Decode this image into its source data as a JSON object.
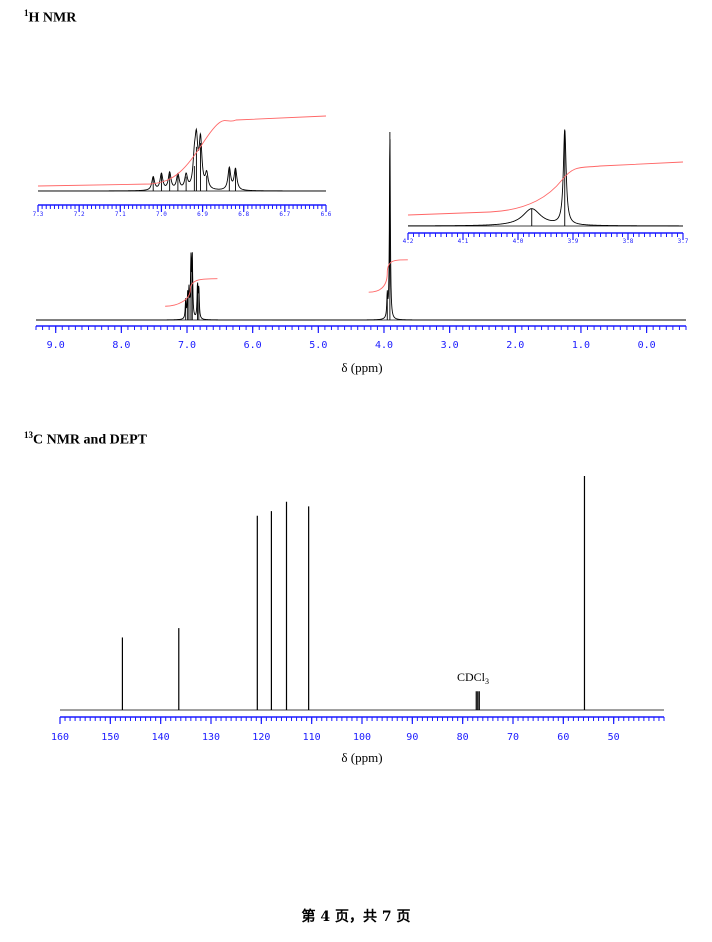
{
  "page": {
    "h_heading": {
      "sup": "1",
      "text": "H NMR"
    },
    "c_heading": {
      "sup": "13",
      "text": "C NMR and DEPT"
    },
    "footer": "第 4 页，共 7 页"
  },
  "chart_data": [
    {
      "type": "line",
      "title": "1H NMR",
      "xlabel": "δ (ppm)",
      "xlim": [
        9.3,
        -0.6
      ],
      "x_ticks": [
        "9.0",
        "8.0",
        "7.0",
        "6.0",
        "5.0",
        "4.0",
        "3.0",
        "2.0",
        "1.0",
        "0.0"
      ],
      "x_tick_values": [
        9.0,
        8.0,
        7.0,
        6.0,
        5.0,
        4.0,
        3.0,
        2.0,
        1.0,
        0.0
      ],
      "series": [
        {
          "peaks": [
            {
              "x": 7.02,
              "h": 0.1
            },
            {
              "x": 6.99,
              "h": 0.12
            },
            {
              "x": 6.97,
              "h": 0.14
            },
            {
              "x": 6.94,
              "h": 0.3
            },
            {
              "x": 6.92,
              "h": 0.32
            },
            {
              "x": 6.84,
              "h": 0.18
            },
            {
              "x": 6.82,
              "h": 0.16
            },
            {
              "x": 3.95,
              "h": 0.12
            },
            {
              "x": 3.91,
              "h": 1.0
            }
          ]
        }
      ],
      "integral_steps": [
        {
          "from": 7.15,
          "to": 6.75,
          "y0": 0.35,
          "y1": 0.58
        },
        {
          "from": 4.05,
          "to": 3.85,
          "y0": 0.6,
          "y1": 0.88
        }
      ],
      "insets": [
        {
          "xlim": [
            7.3,
            6.6
          ],
          "x_ticks": [
            "7.3",
            "7.2",
            "7.1",
            "7.0",
            "6.9",
            "6.8",
            "6.7",
            "6.6"
          ],
          "x_tick_values": [
            7.3,
            7.2,
            7.1,
            7.0,
            6.9,
            6.8,
            6.7,
            6.6
          ],
          "peaks": [
            {
              "x": 7.02,
              "h": 0.28
            },
            {
              "x": 7.0,
              "h": 0.34
            },
            {
              "x": 6.98,
              "h": 0.36
            },
            {
              "x": 6.96,
              "h": 0.32
            },
            {
              "x": 6.94,
              "h": 0.3
            },
            {
              "x": 6.92,
              "h": 0.52
            },
            {
              "x": 6.915,
              "h": 0.92
            },
            {
              "x": 6.905,
              "h": 1.0
            },
            {
              "x": 6.89,
              "h": 0.32
            },
            {
              "x": 6.835,
              "h": 0.46
            },
            {
              "x": 6.82,
              "h": 0.44
            }
          ]
        },
        {
          "xlim": [
            4.2,
            3.7
          ],
          "x_ticks": [
            "4.2",
            "4.1",
            "4.0",
            "3.9",
            "3.8",
            "3.7"
          ],
          "x_tick_values": [
            4.2,
            4.1,
            4.0,
            3.9,
            3.8,
            3.7
          ],
          "peaks": [
            {
              "x": 3.975,
              "h": 0.18,
              "w": 0.02
            },
            {
              "x": 3.915,
              "h": 1.0,
              "w": 0.003
            }
          ]
        }
      ]
    },
    {
      "type": "line",
      "title": "13C NMR and DEPT",
      "xlabel": "δ (ppm)",
      "xlim": [
        160,
        40
      ],
      "x_ticks": [
        "160",
        "150",
        "140",
        "130",
        "120",
        "110",
        "100",
        "90",
        "80",
        "70",
        "60",
        "50"
      ],
      "x_tick_values": [
        160,
        150,
        140,
        130,
        120,
        110,
        100,
        90,
        80,
        70,
        60,
        50
      ],
      "series": [
        {
          "peaks": [
            {
              "x": 147.6,
              "h": 0.31
            },
            {
              "x": 136.4,
              "h": 0.35
            },
            {
              "x": 120.8,
              "h": 0.83
            },
            {
              "x": 118.0,
              "h": 0.85
            },
            {
              "x": 115.0,
              "h": 0.89
            },
            {
              "x": 110.6,
              "h": 0.87
            },
            {
              "x": 77.3,
              "h": 0.08
            },
            {
              "x": 77.0,
              "h": 0.08
            },
            {
              "x": 76.7,
              "h": 0.08
            },
            {
              "x": 55.8,
              "h": 1.0
            }
          ]
        }
      ],
      "annotations": [
        {
          "text": "CDCl",
          "sub": "3",
          "x": 77.0
        }
      ]
    }
  ]
}
